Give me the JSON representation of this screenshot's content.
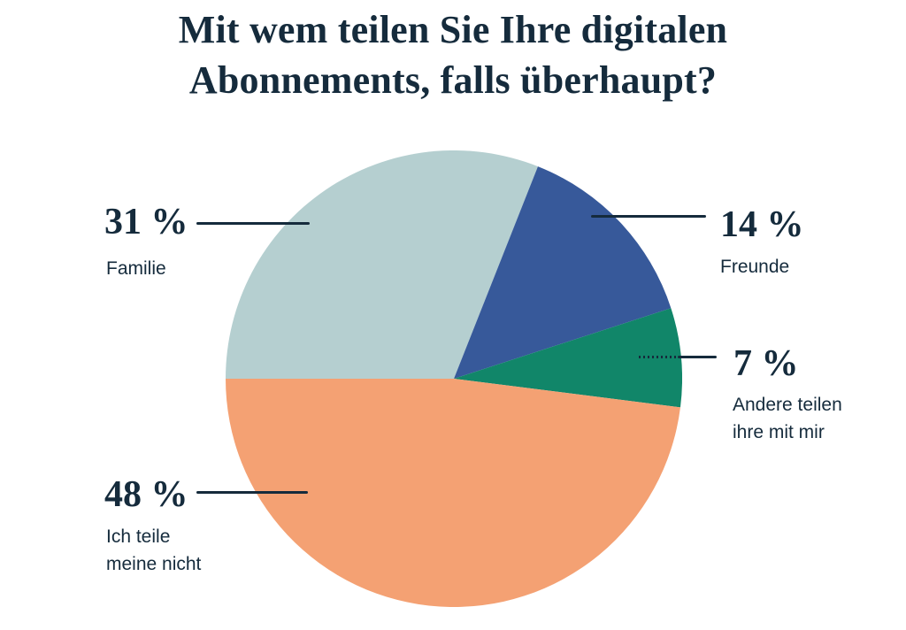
{
  "title": "Mit wem teilen Sie Ihre digitalen Abonnements, falls überhaupt?",
  "title_lines": [
    "Mit wem teilen Sie Ihre digitalen",
    "Abonnements, falls überhaupt?"
  ],
  "colors": {
    "background": "#FFFFFF",
    "text": "#152B3C",
    "leader_line": "#152B3C",
    "slice_familie": "#B5CFD0",
    "slice_freunde": "#37599A",
    "slice_andere": "#118669",
    "slice_nicht": "#F4A173"
  },
  "chart_data": {
    "type": "pie",
    "title": "Mit wem teilen Sie Ihre digitalen Abonnements, falls überhaupt?",
    "start_angle_deg": 270,
    "direction": "clockwise",
    "unit": "%",
    "slices": [
      {
        "id": "familie",
        "label": "Familie",
        "value": 31,
        "display": "31 %",
        "color": "#B5CFD0"
      },
      {
        "id": "freunde",
        "label": "Freunde",
        "value": 14,
        "display": "14 %",
        "color": "#37599A"
      },
      {
        "id": "andere",
        "label": "Andere teilen ihre mit mir",
        "value": 7,
        "display": "7 %",
        "color": "#118669"
      },
      {
        "id": "nicht",
        "label": "Ich teile meine nicht",
        "value": 48,
        "display": "48 %",
        "color": "#F4A173"
      }
    ]
  },
  "callouts": [
    {
      "pct": "31 %",
      "lines": [
        "Familie"
      ]
    },
    {
      "pct": "14 %",
      "lines": [
        "Freunde"
      ]
    },
    {
      "pct": "7 %",
      "lines": [
        "Andere teilen",
        "ihre mit mir"
      ]
    },
    {
      "pct": "48 %",
      "lines": [
        "Ich teile",
        "meine nicht"
      ]
    }
  ]
}
